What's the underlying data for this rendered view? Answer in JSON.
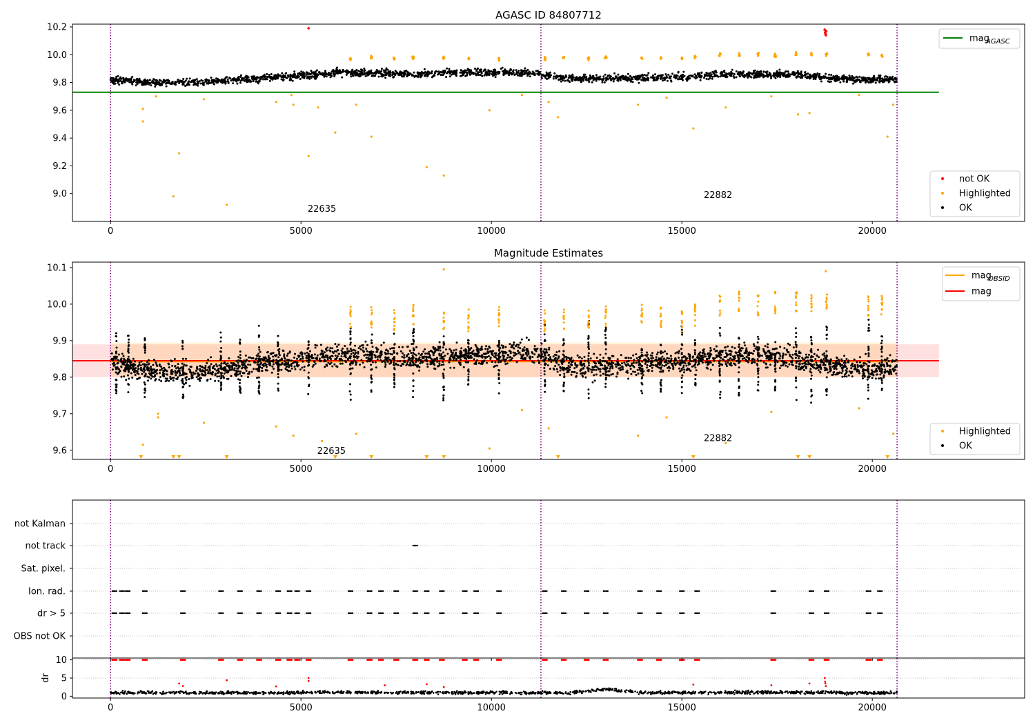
{
  "colors": {
    "ok": "#000000",
    "highlighted": "#ffa500",
    "not_ok": "#ff0000",
    "mag_agasc_line": "#008000",
    "mag_obsid_line": "#ffa500",
    "mag_line": "#ff0000",
    "vline": "#800080",
    "grid": "#b0b0b0"
  },
  "chart_data": [
    {
      "type": "scatter",
      "title": "AGASC ID 84807712",
      "xlim": [
        -1000,
        24000
      ],
      "ylim": [
        8.8,
        10.22
      ],
      "xticks": [
        0,
        5000,
        10000,
        15000,
        20000
      ],
      "yticks": [
        9.0,
        9.2,
        9.4,
        9.6,
        9.8,
        10.0,
        10.2
      ],
      "ytick_labels": [
        "9.0",
        "9.2",
        "9.4",
        "9.6",
        "9.8",
        "10.0",
        "10.2"
      ],
      "obsid_boundaries": [
        0,
        11300,
        20650
      ],
      "obsid_labels": [
        {
          "text": "22635",
          "x": 5550,
          "y": 8.87
        },
        {
          "text": "22882",
          "x": 15950,
          "y": 8.97
        }
      ],
      "hlines": [
        {
          "name": "mag_AGASC",
          "y": 9.73,
          "x": [
            -1000,
            21750
          ],
          "color": "#008000"
        }
      ],
      "legend_lines": [
        {
          "label": "mag",
          "sub": "AGASC",
          "color": "#008000"
        }
      ],
      "legend_points": [
        {
          "label": "not OK",
          "color": "#ff0000"
        },
        {
          "label": "Highlighted",
          "color": "#ffa500"
        },
        {
          "label": "OK",
          "color": "#000000"
        }
      ],
      "series": [
        {
          "name": "OK",
          "x": [
            0,
            1000,
            2000,
            3000,
            4000,
            5000,
            6000,
            7000,
            8000,
            9000,
            10000,
            11000,
            12000,
            13000,
            14000,
            15000,
            16000,
            17000,
            18000,
            19000,
            20000,
            20650
          ],
          "y": [
            9.82,
            9.8,
            9.8,
            9.81,
            9.83,
            9.85,
            9.87,
            9.87,
            9.86,
            9.87,
            9.87,
            9.87,
            9.83,
            9.83,
            9.83,
            9.84,
            9.86,
            9.86,
            9.86,
            9.83,
            9.82,
            9.82
          ]
        },
        {
          "name": "Highlighted",
          "x": [
            850,
            850,
            1200,
            1650,
            1800,
            2450,
            3050,
            4350,
            4750,
            4800,
            5200,
            5450,
            5900,
            6450,
            6850,
            8300,
            8750,
            9950,
            10800,
            11500,
            11750,
            13850,
            14600,
            15300,
            16150,
            17350,
            18050,
            18350,
            19650,
            20400,
            20550
          ],
          "y": [
            9.61,
            9.52,
            9.7,
            8.98,
            9.29,
            9.68,
            8.92,
            9.66,
            9.71,
            9.64,
            9.27,
            9.62,
            9.44,
            9.64,
            9.41,
            9.19,
            9.13,
            9.6,
            9.71,
            9.66,
            9.55,
            9.64,
            9.69,
            9.47,
            9.62,
            9.7,
            9.57,
            9.58,
            9.71,
            9.41,
            9.64
          ]
        },
        {
          "name": "not OK",
          "x": [
            5200,
            18750,
            18760,
            18770,
            18780,
            18790
          ],
          "y": [
            10.19,
            10.18,
            10.16,
            10.15,
            10.14,
            10.17
          ]
        }
      ]
    },
    {
      "type": "scatter",
      "title": "Magnitude Estimates",
      "xlim": [
        -1000,
        24000
      ],
      "ylim": [
        9.575,
        10.115
      ],
      "xticks": [
        0,
        5000,
        10000,
        15000,
        20000
      ],
      "yticks": [
        9.6,
        9.7,
        9.8,
        9.9,
        10.0,
        10.1
      ],
      "ytick_labels": [
        "9.6",
        "9.7",
        "9.8",
        "9.9",
        "10.0",
        "10.1"
      ],
      "obsid_boundaries": [
        0,
        11300,
        20650
      ],
      "obsid_labels": [
        {
          "text": "22635",
          "x": 5800,
          "y": 9.59
        },
        {
          "text": "22882",
          "x": 15950,
          "y": 9.625
        }
      ],
      "hlines": [
        {
          "name": "mag_OBSID",
          "y": 9.845,
          "x": [
            0,
            20650
          ],
          "color": "#ffa500",
          "band": [
            9.8,
            9.895
          ]
        },
        {
          "name": "mag",
          "y": 9.845,
          "x": [
            -1000,
            21750
          ],
          "color": "#ff0000",
          "band": [
            9.8,
            9.89
          ]
        }
      ],
      "legend_lines": [
        {
          "label": "mag",
          "sub": "OBSID",
          "color": "#ffa500"
        },
        {
          "label": "mag",
          "sub": "",
          "color": "#ff0000"
        }
      ],
      "legend_points": [
        {
          "label": "Highlighted",
          "color": "#ffa500"
        },
        {
          "label": "OK",
          "color": "#000000"
        }
      ],
      "series": [
        {
          "name": "OK",
          "x": [
            0,
            1000,
            2000,
            3000,
            4000,
            5000,
            6000,
            7000,
            8000,
            9000,
            10000,
            11000,
            12000,
            13000,
            14000,
            15000,
            16000,
            17000,
            18000,
            19000,
            20000,
            20650
          ],
          "y": [
            9.84,
            9.82,
            9.81,
            9.82,
            9.84,
            9.85,
            9.86,
            9.86,
            9.85,
            9.86,
            9.86,
            9.87,
            9.83,
            9.83,
            9.84,
            9.84,
            9.86,
            9.86,
            9.85,
            9.83,
            9.82,
            9.83
          ]
        },
        {
          "name": "Highlighted",
          "x": [
            850,
            1250,
            1250,
            2450,
            4350,
            4800,
            5550,
            6450,
            8750,
            9950,
            10800,
            11500,
            13850,
            14600,
            16150,
            17350,
            18780,
            19650,
            20550
          ],
          "y": [
            9.615,
            9.7,
            9.69,
            9.675,
            9.665,
            9.64,
            9.625,
            9.645,
            10.095,
            9.605,
            9.71,
            9.66,
            9.64,
            9.69,
            9.62,
            9.705,
            10.09,
            9.715,
            9.645
          ]
        },
        {
          "name": "Highlighted (below range)",
          "x": [
            800,
            1650,
            1800,
            3050,
            5900,
            6850,
            8300,
            8750,
            11750,
            15300,
            18050,
            18350,
            20400
          ],
          "y": [
            9.575,
            9.575,
            9.575,
            9.575,
            9.575,
            9.575,
            9.575,
            9.575,
            9.575,
            9.575,
            9.575,
            9.575,
            9.575
          ]
        }
      ]
    },
    {
      "type": "scatter",
      "title": "",
      "xlim": [
        -1000,
        24000
      ],
      "categories": [
        "not Kalman",
        "not track",
        "Sat. pixel.",
        "Ion. rad.",
        "dr > 5",
        "OBS not OK"
      ],
      "obsid_boundaries": [
        0,
        11300,
        20650
      ],
      "series": [
        {
          "name": "Ion. rad.",
          "x": [
            100,
            300,
            450,
            900,
            1900,
            2900,
            3400,
            3900,
            4400,
            4700,
            4900,
            5200,
            6300,
            6800,
            7100,
            7500,
            8000,
            8300,
            8700,
            9300,
            9600,
            10200,
            11400,
            11900,
            12500,
            13000,
            13900,
            14400,
            15000,
            15400,
            17400,
            18400,
            18800,
            19900,
            20200
          ],
          "category": "Ion. rad."
        },
        {
          "name": "dr > 5",
          "x": [
            100,
            300,
            450,
            900,
            1900,
            2900,
            3400,
            3900,
            4400,
            4700,
            4900,
            5200,
            6300,
            6800,
            7100,
            7500,
            8000,
            8300,
            8700,
            9300,
            9600,
            10200,
            11400,
            11900,
            12500,
            13000,
            13900,
            14400,
            15000,
            15400,
            17400,
            18400,
            18800,
            19900,
            20200
          ],
          "category": "dr > 5"
        },
        {
          "name": "not track",
          "x": [
            8000
          ],
          "category": "not track"
        }
      ]
    },
    {
      "type": "scatter",
      "title": "",
      "ylabel": "dr",
      "xlim": [
        -1000,
        24000
      ],
      "ylim": [
        -0.5,
        10.5
      ],
      "xticks": [
        0,
        5000,
        10000,
        15000,
        20000
      ],
      "yticks": [
        0,
        5,
        10
      ],
      "ytick_labels": [
        "0",
        "5",
        "10"
      ],
      "obsid_boundaries": [
        0,
        11300,
        20650
      ],
      "series": [
        {
          "name": "OK",
          "x": [
            0,
            2000,
            4000,
            6000,
            8000,
            10000,
            12000,
            13000,
            14000,
            16000,
            18000,
            20000,
            20650
          ],
          "y": [
            1.0,
            1.0,
            0.9,
            1.1,
            1.0,
            1.0,
            0.9,
            2.0,
            1.0,
            1.0,
            1.1,
            0.9,
            1.0
          ]
        },
        {
          "name": "dr > 5",
          "x": [
            100,
            300,
            450,
            900,
            1900,
            2900,
            3400,
            3900,
            4400,
            4700,
            4900,
            5200,
            6300,
            6800,
            7100,
            7500,
            8000,
            8300,
            8700,
            9300,
            9600,
            10200,
            11400,
            11900,
            12500,
            13000,
            13900,
            14400,
            15000,
            15400,
            17400,
            18400,
            18800,
            19900,
            20200
          ],
          "y": [
            10,
            10,
            10,
            10,
            10,
            10,
            10,
            10,
            10,
            10,
            10,
            10,
            10,
            10,
            10,
            10,
            10,
            10,
            10,
            10,
            10,
            10,
            10,
            10,
            10,
            10,
            10,
            10,
            10,
            10,
            10,
            10,
            10,
            10,
            10
          ]
        },
        {
          "name": "red scattered",
          "x": [
            1800,
            1900,
            3050,
            4350,
            5200,
            5200,
            7200,
            8300,
            8750,
            15300,
            17350,
            18350,
            18750,
            18760,
            18770,
            18780
          ],
          "y": [
            3.5,
            2.8,
            4.4,
            2.7,
            5.0,
            4.2,
            3.0,
            3.3,
            2.5,
            3.2,
            3.0,
            3.5,
            5.0,
            4.0,
            3.5,
            2.8
          ]
        }
      ]
    }
  ]
}
